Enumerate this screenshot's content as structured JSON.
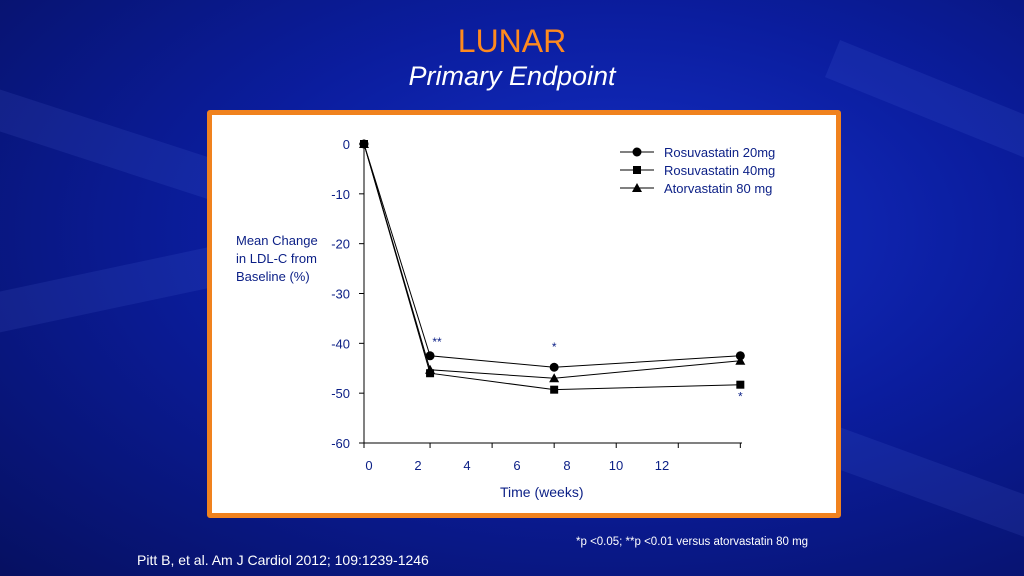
{
  "slide": {
    "title": "LUNAR",
    "subtitle": "Primary Endpoint",
    "footnote": "*p <0.05; **p <0.01 versus atorvastatin 80 mg",
    "citation": "Pitt B, et al. Am J Cardiol 2012; 109:1239-1246",
    "colors": {
      "title": "#ff8a1e",
      "frame": "#f0821e",
      "chart_text": "#0b1f86"
    }
  },
  "chart_data": {
    "type": "line",
    "xlabel": "Time (weeks)",
    "ylabel": "Mean Change in LDL-C from Baseline (%)",
    "ylabel_lines": [
      "Mean Change",
      "in LDL-C from",
      "Baseline (%)"
    ],
    "xlim": [
      0,
      15
    ],
    "ylim": [
      -60,
      0
    ],
    "xticks": [
      0,
      2,
      4,
      6,
      8,
      10,
      12
    ],
    "yticks": [
      0,
      -10,
      -20,
      -30,
      -40,
      -50,
      -60
    ],
    "legend_position": "top-right",
    "series": [
      {
        "name": "Rosuvastatin 20mg",
        "marker": "circle",
        "x": [
          0,
          2.5,
          7.5,
          15
        ],
        "values": [
          0,
          -42.5,
          -44.8,
          -42.5
        ]
      },
      {
        "name": "Rosuvastatin 40mg",
        "marker": "square",
        "x": [
          0,
          2.5,
          7.5,
          15
        ],
        "values": [
          0,
          -46,
          -49.3,
          -48.3
        ]
      },
      {
        "name": "Atorvastatin 80 mg",
        "marker": "triangle",
        "x": [
          0,
          2.5,
          7.5,
          15
        ],
        "values": [
          0,
          -45.3,
          -47,
          -43.5
        ]
      }
    ],
    "annotations": [
      {
        "text": "**",
        "x": 2.5,
        "y": -40.5
      },
      {
        "text": "*",
        "x": 7.5,
        "y": -41.5
      },
      {
        "text": "*",
        "x": 15,
        "y": -51.5
      }
    ]
  }
}
